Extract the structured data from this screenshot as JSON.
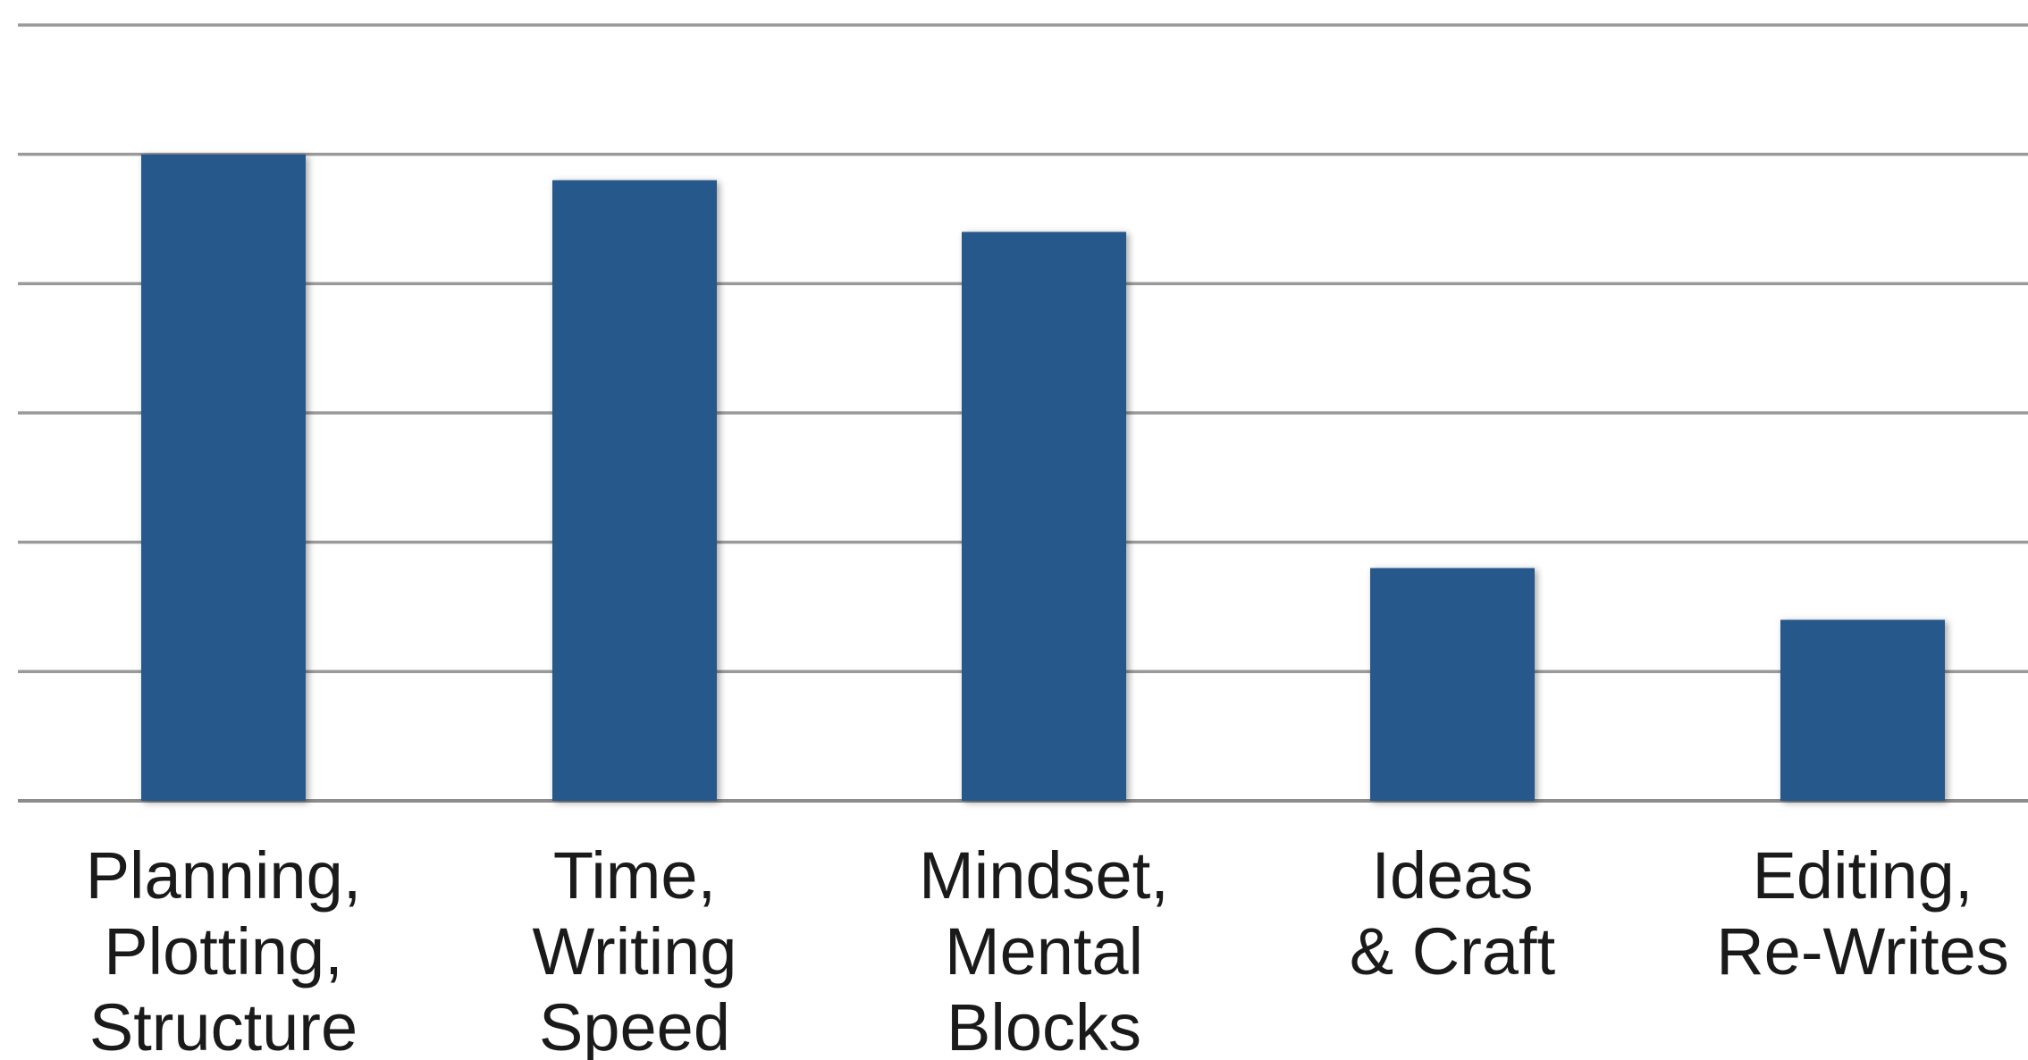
{
  "chart_data": {
    "type": "bar",
    "categories": [
      [
        "Planning,",
        "Plotting,",
        "Structure"
      ],
      [
        "Time,",
        "Writing",
        "Speed"
      ],
      [
        "Mindset,",
        "Mental",
        "Blocks"
      ],
      [
        "Ideas",
        "& Craft"
      ],
      [
        "Editing,",
        "Re-Writes"
      ]
    ],
    "values": [
      50,
      48,
      44,
      18,
      14
    ],
    "ylim": [
      0,
      60
    ],
    "grid_step": 10,
    "grid": true,
    "legend": "none",
    "colors": {
      "bar": "#27598c",
      "gridline": "#9a9a9a",
      "label": "#1a1a1a"
    }
  }
}
